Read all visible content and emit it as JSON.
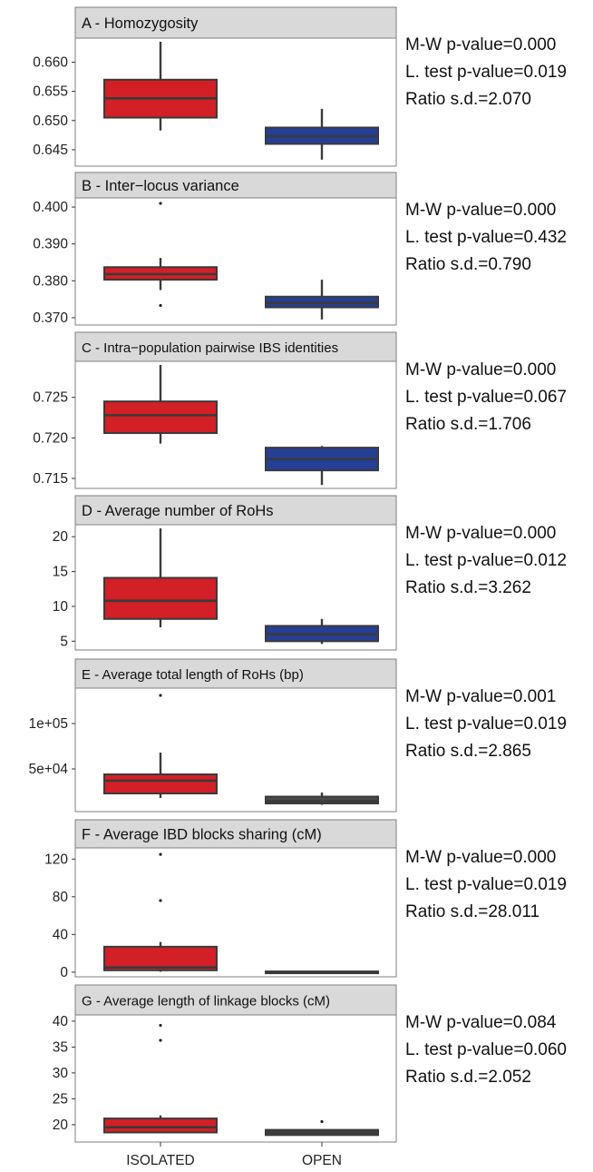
{
  "chart_data": [
    {
      "type": "box",
      "title": "A - Homozygosity",
      "categories": [
        "ISOLATED",
        "OPEN"
      ],
      "ylim": [
        0.6425,
        0.6635
      ],
      "yticks": [
        "0.645",
        "0.650",
        "0.655",
        "0.660"
      ],
      "yticks_values": [
        0.645,
        0.65,
        0.655,
        0.66
      ],
      "boxes": [
        {
          "whisker_low": 0.6483,
          "q1": 0.6505,
          "median": 0.6538,
          "q3": 0.657,
          "whisker_high": 0.6635,
          "outliers": []
        },
        {
          "whisker_low": 0.6433,
          "q1": 0.646,
          "median": 0.6473,
          "q3": 0.6488,
          "whisker_high": 0.652,
          "outliers": []
        }
      ],
      "stats": [
        "M-W p-value=0.000",
        "L. test p-value=0.019",
        "Ratio s.d.=2.070"
      ]
    },
    {
      "type": "box",
      "title": "B - Inter−locus variance",
      "categories": [
        "ISOLATED",
        "OPEN"
      ],
      "ylim": [
        0.3685,
        0.4015
      ],
      "yticks": [
        "0.370",
        "0.380",
        "0.390",
        "0.400"
      ],
      "yticks_values": [
        0.37,
        0.38,
        0.39,
        0.4
      ],
      "boxes": [
        {
          "whisker_low": 0.3775,
          "q1": 0.3803,
          "median": 0.3818,
          "q3": 0.3837,
          "whisker_high": 0.3862,
          "outliers": [
            0.401,
            0.3733
          ]
        },
        {
          "whisker_low": 0.3695,
          "q1": 0.3728,
          "median": 0.374,
          "q3": 0.3757,
          "whisker_high": 0.3803,
          "outliers": []
        }
      ]
    },
    {
      "type": "box",
      "title": "C - Intra−population pairwise IBS identities",
      "categories": [
        "ISOLATED",
        "OPEN"
      ],
      "ylim": [
        0.714,
        0.729
      ],
      "yticks": [
        "0.715",
        "0.720",
        "0.725"
      ],
      "yticks_values": [
        0.715,
        0.72,
        0.725
      ],
      "boxes": [
        {
          "whisker_low": 0.7193,
          "q1": 0.7206,
          "median": 0.7228,
          "q3": 0.7245,
          "whisker_high": 0.729,
          "outliers": []
        },
        {
          "whisker_low": 0.7142,
          "q1": 0.716,
          "median": 0.7174,
          "q3": 0.7188,
          "whisker_high": 0.719,
          "outliers": []
        }
      ]
    },
    {
      "type": "box",
      "title": "D - Average number of RoHs",
      "categories": [
        "ISOLATED",
        "OPEN"
      ],
      "ylim": [
        4.0,
        21.2
      ],
      "yticks": [
        "5",
        "10",
        "15",
        "20"
      ],
      "yticks_values": [
        5,
        10,
        15,
        20
      ],
      "boxes": [
        {
          "whisker_low": 7.0,
          "q1": 8.2,
          "median": 10.8,
          "q3": 14.1,
          "whisker_high": 21.2,
          "outliers": []
        },
        {
          "whisker_low": 4.6,
          "q1": 5.0,
          "median": 6.0,
          "q3": 7.2,
          "whisker_high": 8.2,
          "outliers": []
        }
      ]
    },
    {
      "type": "box",
      "title": "E - Average total length of RoHs (bp)",
      "categories": [
        "ISOLATED",
        "OPEN"
      ],
      "ylim": [
        5000,
        135000
      ],
      "yticks": [
        "5e+04",
        "1e+05"
      ],
      "yticks_values": [
        50000,
        100000
      ],
      "boxes": [
        {
          "whisker_low": 18000,
          "q1": 23000,
          "median": 37000,
          "q3": 44000,
          "whisker_high": 68000,
          "outliers": [
            131000
          ]
        },
        {
          "whisker_low": 10500,
          "q1": 12000,
          "median": 14500,
          "q3": 19500,
          "whisker_high": 24000,
          "outliers": []
        }
      ]
    },
    {
      "type": "box",
      "title": "F - Average IBD blocks sharing (cM)",
      "categories": [
        "ISOLATED",
        "OPEN"
      ],
      "ylim": [
        -3,
        128
      ],
      "yticks": [
        "0",
        "40",
        "80",
        "120"
      ],
      "yticks_values": [
        0,
        40,
        80,
        120
      ],
      "boxes": [
        {
          "whisker_low": 0.5,
          "q1": 2,
          "median": 5,
          "q3": 27,
          "whisker_high": 32,
          "outliers": [
            125,
            76
          ]
        },
        {
          "whisker_low": -0.5,
          "q1": -0.5,
          "median": 0,
          "q3": 0.8,
          "whisker_high": 1.2,
          "outliers": []
        }
      ]
    },
    {
      "type": "box",
      "title": "G - Average length of linkage blocks (cM)",
      "categories": [
        "ISOLATED",
        "OPEN"
      ],
      "ylim": [
        17.0,
        40.5
      ],
      "yticks": [
        "20",
        "25",
        "30",
        "35",
        "40"
      ],
      "yticks_values": [
        20,
        25,
        30,
        35,
        40
      ],
      "boxes": [
        {
          "whisker_low": 18.5,
          "q1": 18.5,
          "median": 19.5,
          "q3": 21.2,
          "whisker_high": 21.8,
          "outliers": [
            39.2,
            36.3
          ]
        },
        {
          "whisker_low": 18.0,
          "q1": 18.0,
          "median": 18.5,
          "q3": 19.0,
          "whisker_high": 19.0,
          "outliers": [
            20.6
          ]
        }
      ]
    }
  ],
  "stats_text": [
    [
      "M-W p-value=0.000",
      "L. test p-value=0.019",
      "Ratio s.d.=2.070"
    ],
    [
      "M-W p-value=0.000",
      "L. test p-value=0.432",
      "Ratio s.d.=0.790"
    ],
    [
      "M-W p-value=0.000",
      "L. test p-value=0.067",
      "Ratio s.d.=1.706"
    ],
    [
      "M-W p-value=0.000",
      "L. test p-value=0.012",
      "Ratio s.d.=3.262"
    ],
    [
      "M-W p-value=0.001",
      "L. test p-value=0.019",
      "Ratio s.d.=2.865"
    ],
    [
      "M-W p-value=0.000",
      "L. test p-value=0.019",
      "Ratio s.d.=28.011"
    ],
    [
      "M-W p-value=0.084",
      "L. test p-value=0.060",
      "Ratio s.d.=2.052"
    ]
  ],
  "colors": {
    "isolated_fill": "#d31f26",
    "open_fill": "#253f96",
    "open_fill_dark": "#4a4a4e",
    "box_line": "#3a3a3a",
    "strip_bg": "#d9d9d9",
    "panel_border": "#7f7f7f"
  }
}
